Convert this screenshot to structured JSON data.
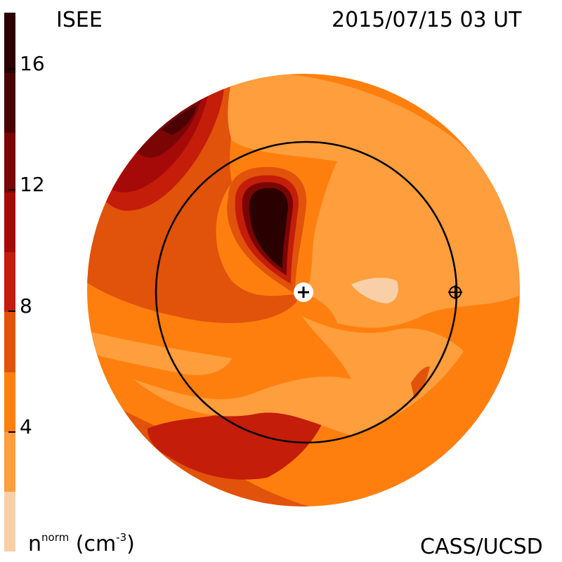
{
  "header": {
    "model_label": "ISEE",
    "timestamp": "2015/07/15 03 UT"
  },
  "footer": {
    "unit_label_base": "n",
    "unit_label_sup": "norm",
    "unit_label_units": " (cm",
    "unit_label_exp": "-3",
    "unit_label_close": ")",
    "credit": "CASS/UCSD"
  },
  "colorbar": {
    "tick_labels": [
      "16",
      "12",
      "8",
      "4"
    ],
    "levels": [
      {
        "range": "0-2",
        "color": "#f9cfa8"
      },
      {
        "range": "2-4",
        "color": "#ff9e3d"
      },
      {
        "range": "4-6",
        "color": "#ff7f0e"
      },
      {
        "range": "6-8",
        "color": "#e1520b"
      },
      {
        "range": "8-10",
        "color": "#c41d0a"
      },
      {
        "range": "10-12",
        "color": "#a50a08"
      },
      {
        "range": "12-14",
        "color": "#7a0505"
      },
      {
        "range": "14-16",
        "color": "#4a0202"
      },
      {
        "range": "16+",
        "color": "#2a0000"
      }
    ]
  },
  "map": {
    "sun_icon": "sun-plus-icon",
    "earth_icon": "earth-crosshair-icon",
    "orbit": "earth-orbit-circle"
  }
}
